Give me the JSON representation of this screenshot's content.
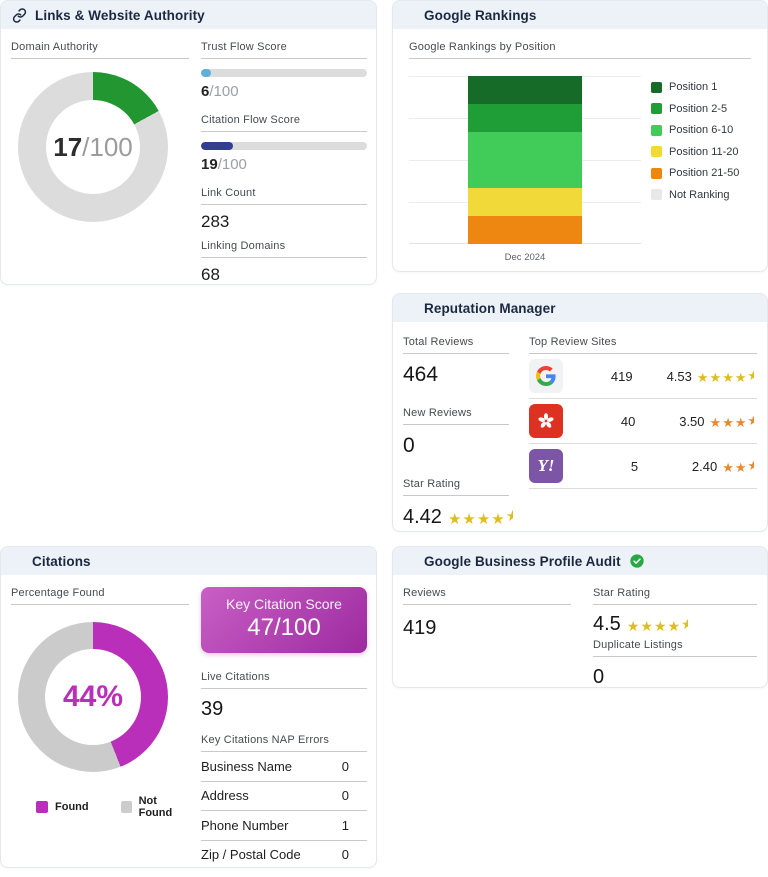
{
  "cards": {
    "links": {
      "title": "Links & Website Authority",
      "domain_authority": {
        "label": "Domain Authority",
        "value": 17,
        "max": 100,
        "value_text": "17",
        "max_text": "/100",
        "color": "#219631",
        "track": "#dcdcdc"
      },
      "trust_flow": {
        "label": "Trust Flow Score",
        "value": 6,
        "max": 100,
        "value_text": "6",
        "max_text": "/100",
        "color": "#5fb0d6",
        "track": "#dcdcdc"
      },
      "citation_flow": {
        "label": "Citation Flow Score",
        "value": 19,
        "max": 100,
        "value_text": "19",
        "max_text": "/100",
        "color": "#333d8f",
        "track": "#dcdcdc"
      },
      "link_count": {
        "label": "Link Count",
        "value": "283"
      },
      "linking_domains": {
        "label": "Linking Domains",
        "value": "68"
      }
    },
    "rankings": {
      "title": "Google Rankings",
      "subtitle": "Google Rankings by Position"
    },
    "reputation": {
      "title": "Reputation Manager",
      "total_reviews": {
        "label": "Total Reviews",
        "value": "464"
      },
      "new_reviews": {
        "label": "New Reviews",
        "value": "0"
      },
      "star_rating": {
        "label": "Star Rating",
        "value": 4.42,
        "value_text": "4.42",
        "color": "#ddbe1f"
      },
      "top_review_sites_label": "Top Review Sites",
      "sites": [
        {
          "name": "Google",
          "icon": "google-icon",
          "reviews": "419",
          "value": 4.53,
          "value_text": "4.53",
          "color": "#ddbe1f"
        },
        {
          "name": "Yelp",
          "icon": "yelp-icon",
          "reviews": "40",
          "value": 3.5,
          "value_text": "3.50",
          "color": "#e8892e"
        },
        {
          "name": "Yahoo",
          "icon": "yahoo-icon",
          "reviews": "5",
          "value": 2.4,
          "value_text": "2.40",
          "color": "#e8892e",
          "glyph": "Y!"
        }
      ]
    },
    "citations": {
      "title": "Citations",
      "percentage_found": {
        "label": "Percentage Found",
        "value": 44,
        "max": 100,
        "display": "44%",
        "color": "#b92fb9",
        "track": "#cbcbcb"
      },
      "legend": [
        {
          "label": "Found",
          "color": "#b92fb9"
        },
        {
          "label": "Not Found",
          "color": "#cccccc"
        }
      ],
      "key_citation_score": {
        "label": "Key Citation Score",
        "display": "47/100",
        "gradient_from": "#c95fc6",
        "gradient_to": "#9d2b9f"
      },
      "live_citations": {
        "label": "Live Citations",
        "value": "39"
      },
      "nap_errors": {
        "label": "Key Citations NAP Errors",
        "rows": [
          {
            "label": "Business Name",
            "value": "0"
          },
          {
            "label": "Address",
            "value": "0"
          },
          {
            "label": "Phone Number",
            "value": "1"
          },
          {
            "label": "Zip / Postal Code",
            "value": "0"
          }
        ]
      }
    },
    "gbp": {
      "title": "Google Business Profile Audit",
      "reviews": {
        "label": "Reviews",
        "value": "419"
      },
      "star_rating": {
        "label": "Star Rating",
        "value": 4.5,
        "value_text": "4.5",
        "color": "#ddbe1f"
      },
      "duplicate_listings": {
        "label": "Duplicate Listings",
        "value": "0"
      }
    }
  },
  "chart_data": {
    "type": "bar",
    "stacked": true,
    "title": "Google Rankings by Position",
    "categories": [
      "Dec 2024"
    ],
    "series": [
      {
        "name": "Position 1",
        "values": [
          1
        ],
        "color": "#166b28"
      },
      {
        "name": "Position 2-5",
        "values": [
          1
        ],
        "color": "#1f9e37"
      },
      {
        "name": "Position 6-10",
        "values": [
          2
        ],
        "color": "#41cb58"
      },
      {
        "name": "Position 11-20",
        "values": [
          1
        ],
        "color": "#f2d93a"
      },
      {
        "name": "Position 21-50",
        "values": [
          1
        ],
        "color": "#ee8612"
      },
      {
        "name": "Not Ranking",
        "values": [
          0
        ],
        "color": "#e8e8e8"
      }
    ],
    "ylim": [
      0,
      6
    ],
    "grid": true,
    "legend_position": "right",
    "xlabel": "",
    "ylabel": ""
  }
}
